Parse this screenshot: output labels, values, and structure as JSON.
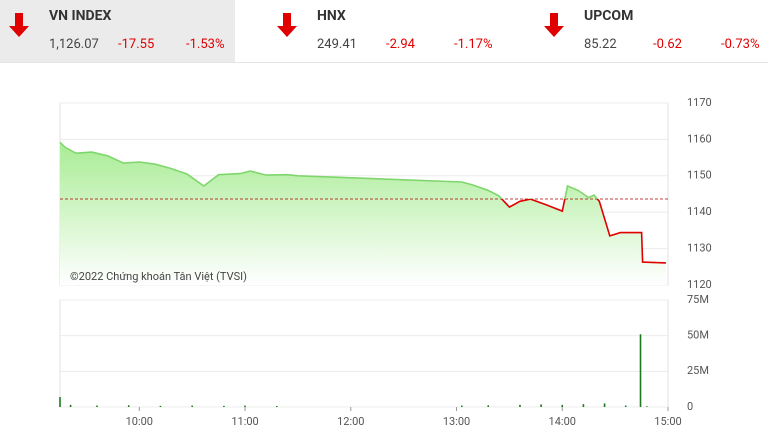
{
  "header": {
    "indices": [
      {
        "name": "VN INDEX",
        "value": "1,126.07",
        "change": "-17.55",
        "percent": "-1.53%"
      },
      {
        "name": "HNX",
        "value": "249.41",
        "change": "-2.94",
        "percent": "-1.17%"
      },
      {
        "name": "UPCOM",
        "value": "85.22",
        "change": "-0.62",
        "percent": "-0.73%"
      }
    ]
  },
  "chart_data": [
    {
      "type": "line",
      "annotation": "©2022 Chứng khoán Tân Việt (TVSI)",
      "x": [
        9.25,
        9.3,
        9.4,
        9.55,
        9.7,
        9.85,
        10.0,
        10.15,
        10.3,
        10.45,
        10.61,
        10.75,
        10.95,
        11.05,
        11.2,
        11.4,
        11.5,
        13.05,
        13.15,
        13.3,
        13.4,
        13.5,
        13.6,
        13.7,
        13.85,
        14.0,
        14.05,
        14.15,
        14.25,
        14.3,
        14.35,
        14.45,
        14.55,
        14.75,
        14.76,
        14.98
      ],
      "values": [
        1159.2,
        1157.8,
        1156.2,
        1156.5,
        1155.5,
        1153.5,
        1153.8,
        1153.2,
        1152.0,
        1150.5,
        1147.2,
        1150.3,
        1150.6,
        1151.3,
        1150.2,
        1150.3,
        1150.0,
        1148.3,
        1147.5,
        1146.0,
        1144.5,
        1141.4,
        1143.0,
        1143.6,
        1142.0,
        1140.3,
        1147.2,
        1146.0,
        1144.0,
        1144.7,
        1143.0,
        1133.5,
        1134.4,
        1134.4,
        1126.3,
        1126.07
      ],
      "reference": 1143.62,
      "up_color": "#7fd66c",
      "down_color": "#e00000",
      "reference_color": "#b00000",
      "xlim": [
        9.25,
        15
      ],
      "ylim": [
        1120,
        1170
      ],
      "yticks": [
        1120,
        1130,
        1140,
        1150,
        1160,
        1170
      ],
      "grid": true
    },
    {
      "type": "bar",
      "color": "#1e7a1e",
      "x": [
        9.25,
        9.35,
        9.6,
        9.9,
        10.2,
        10.5,
        10.8,
        11.0,
        11.3,
        13.05,
        13.3,
        13.6,
        13.8,
        14.0,
        14.2,
        14.4,
        14.6,
        14.74,
        14.8
      ],
      "values": [
        7,
        1.5,
        1.0,
        1.2,
        0.8,
        1.0,
        0.8,
        1.0,
        0.7,
        1.0,
        1.2,
        1.5,
        1.8,
        1.5,
        2.0,
        2.5,
        1.0,
        51,
        0.5
      ],
      "xlim": [
        9.25,
        15
      ],
      "ylim": [
        0,
        75
      ],
      "yticks": [
        0,
        {
          "value": 25,
          "label": "25M"
        },
        {
          "value": 50,
          "label": "50M"
        },
        {
          "value": 75,
          "label": "75M"
        }
      ],
      "xticks": [
        {
          "value": 10,
          "label": "10:00"
        },
        {
          "value": 11,
          "label": "11:00"
        },
        {
          "value": 12,
          "label": "12:00"
        },
        {
          "value": 13,
          "label": "13:00"
        },
        {
          "value": 14,
          "label": "14:00"
        },
        {
          "value": 15,
          "label": "15:00"
        }
      ],
      "grid": true
    }
  ]
}
